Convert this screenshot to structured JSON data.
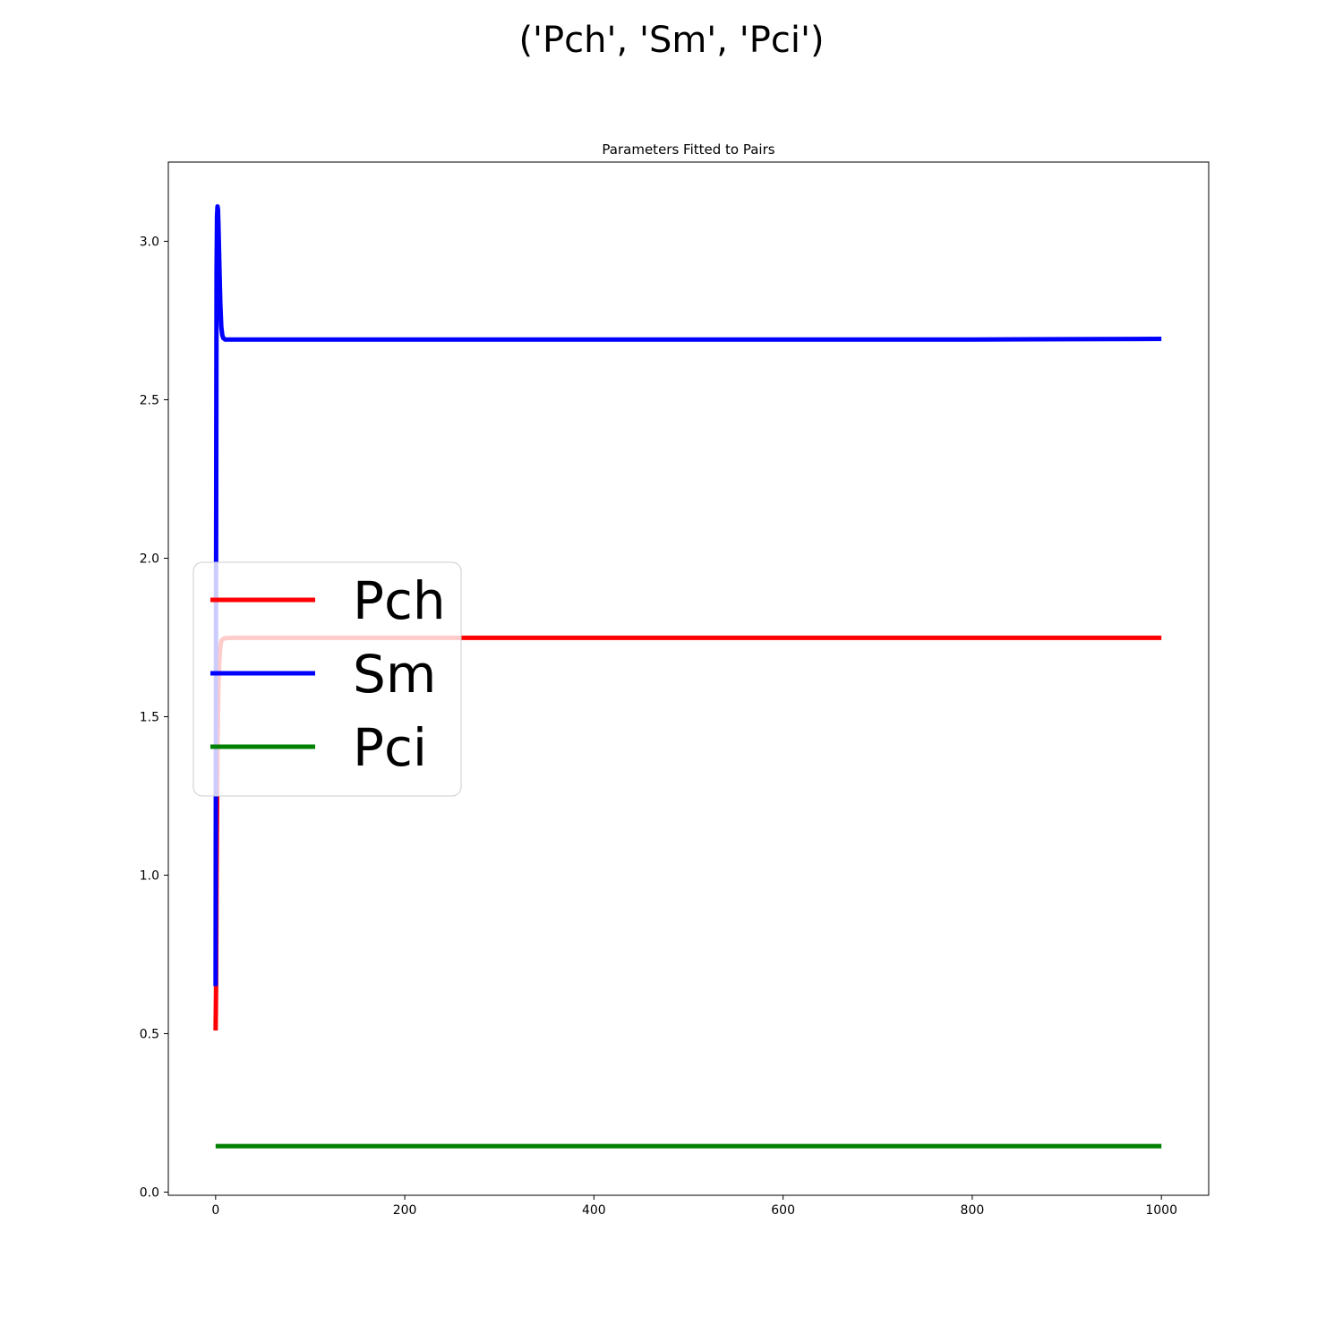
{
  "figure": {
    "suptitle": "('Pch', 'Sm', 'Pci')"
  },
  "chart_data": {
    "type": "line",
    "title": "Parameters Fitted to Pairs",
    "xlabel": "",
    "ylabel": "",
    "xlim": [
      -50,
      1050
    ],
    "ylim": [
      -0.01,
      3.25
    ],
    "x_ticks": [
      0,
      200,
      400,
      600,
      800,
      1000
    ],
    "x_tick_labels": [
      "0",
      "200",
      "400",
      "600",
      "800",
      "1000"
    ],
    "y_ticks": [
      0.0,
      0.5,
      1.0,
      1.5,
      2.0,
      2.5,
      3.0
    ],
    "y_tick_labels": [
      "0.0",
      "0.5",
      "1.0",
      "1.5",
      "2.0",
      "2.5",
      "3.0"
    ],
    "grid": false,
    "legend_position": "center-left",
    "series": [
      {
        "name": "Pch",
        "color": "#ff0000",
        "x": [
          0,
          0.5,
          1,
          2,
          3,
          4,
          5,
          6,
          8,
          10,
          20,
          50,
          100,
          200,
          400,
          600,
          800,
          1000
        ],
        "y": [
          0.51,
          0.65,
          1.0,
          1.4,
          1.6,
          1.68,
          1.72,
          1.74,
          1.745,
          1.748,
          1.749,
          1.749,
          1.749,
          1.749,
          1.749,
          1.749,
          1.749,
          1.749
        ]
      },
      {
        "name": "Sm",
        "color": "#0000ff",
        "x": [
          0,
          0.5,
          1,
          1.5,
          2,
          2.5,
          3,
          4,
          5,
          6,
          7,
          8,
          10,
          20,
          50,
          100,
          200,
          400,
          600,
          800,
          1000
        ],
        "y": [
          0.65,
          2.0,
          2.9,
          3.08,
          3.11,
          3.1,
          3.05,
          2.92,
          2.8,
          2.73,
          2.705,
          2.695,
          2.69,
          2.69,
          2.69,
          2.69,
          2.69,
          2.69,
          2.69,
          2.69,
          2.692
        ]
      },
      {
        "name": "Pci",
        "color": "#008000",
        "x": [
          0,
          200,
          400,
          600,
          800,
          1000
        ],
        "y": [
          0.145,
          0.145,
          0.145,
          0.145,
          0.145,
          0.145
        ]
      }
    ]
  }
}
